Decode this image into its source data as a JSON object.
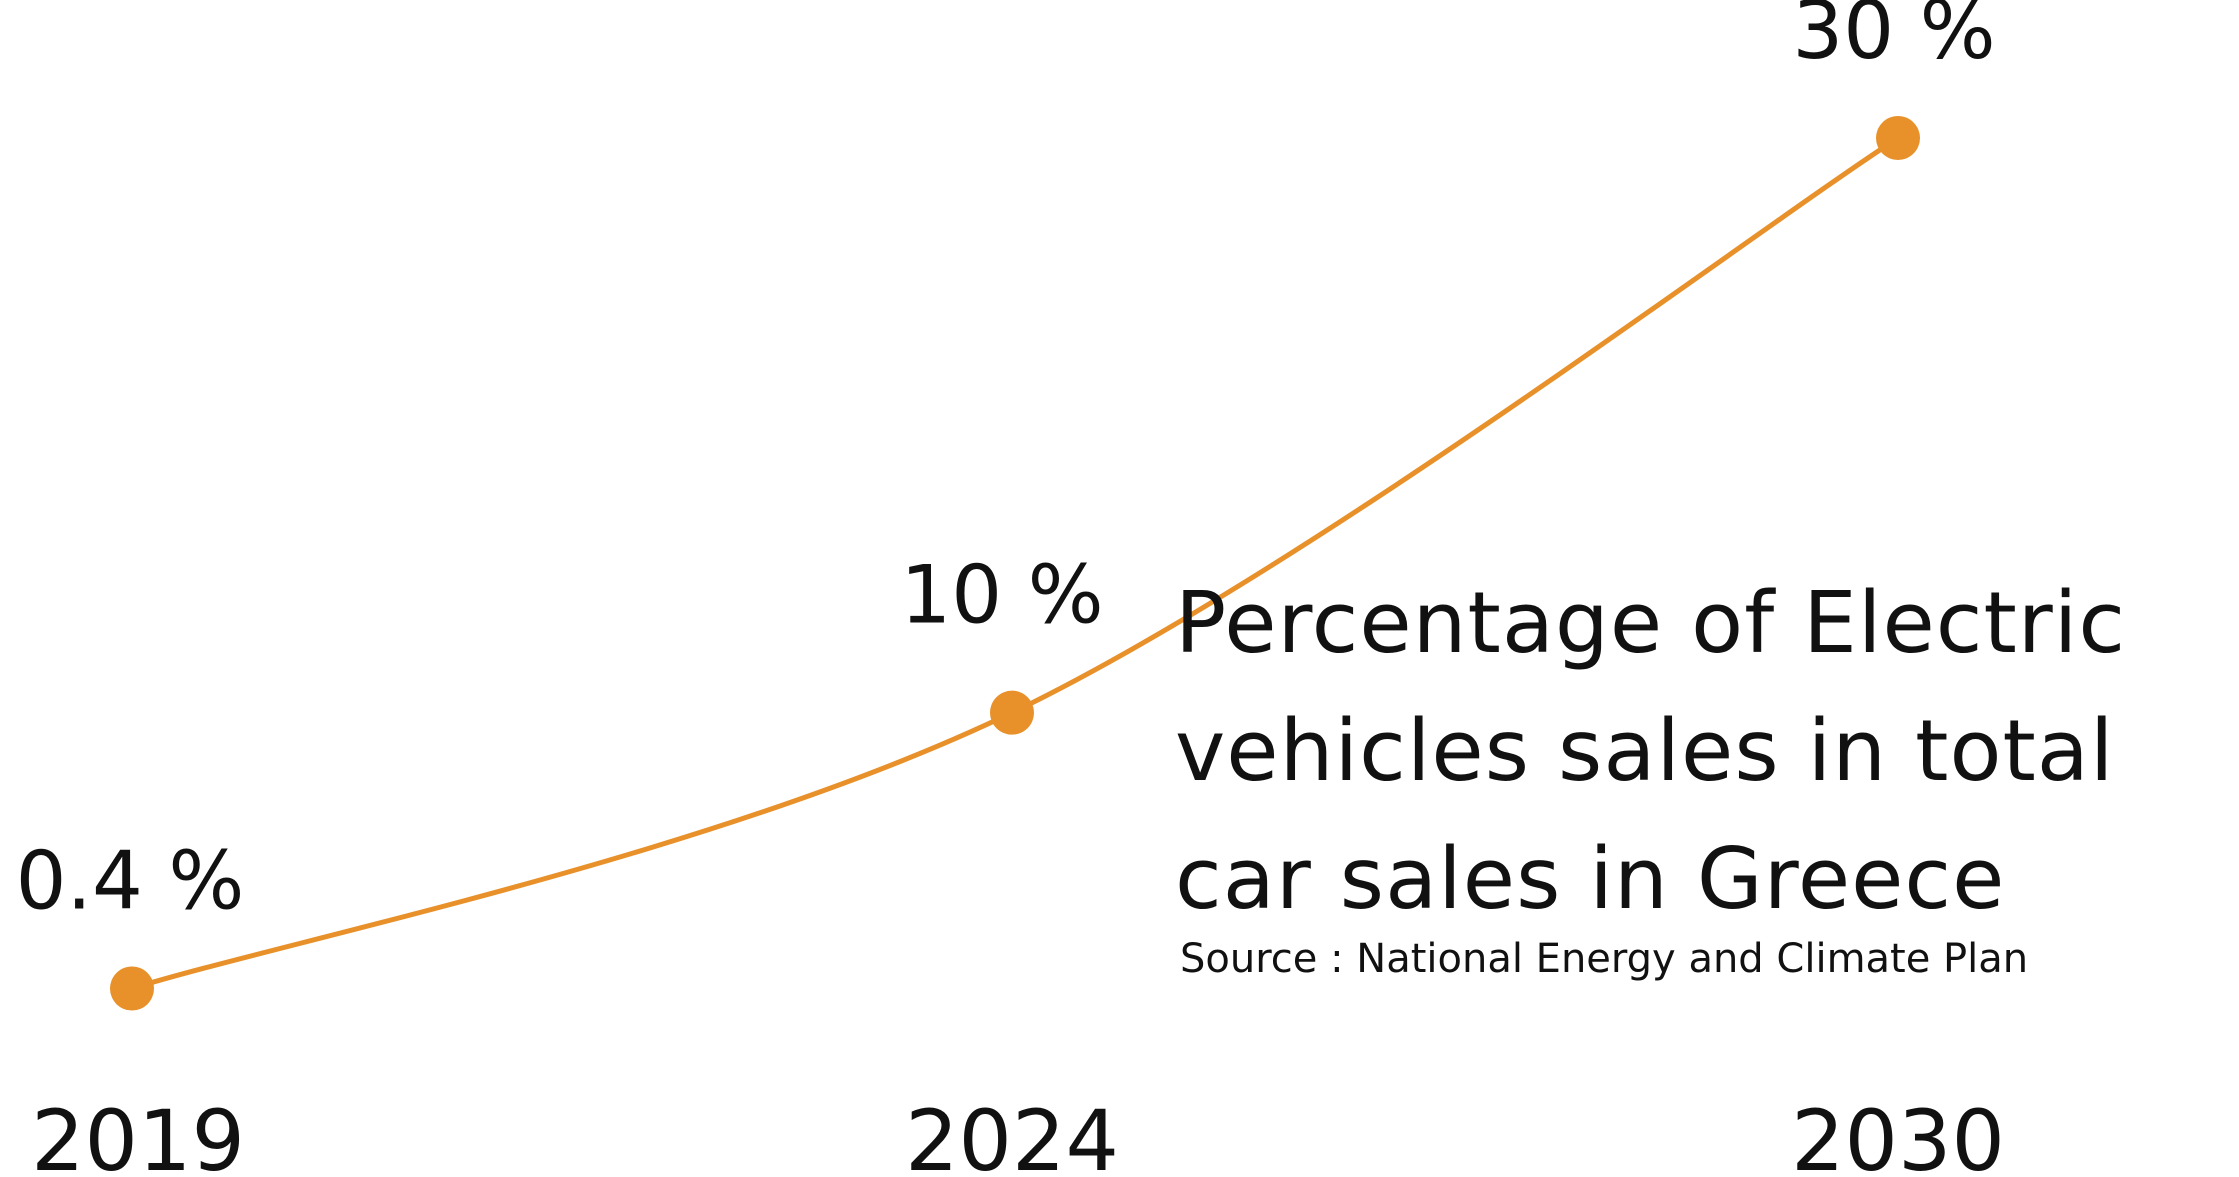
{
  "chart_data": {
    "type": "line",
    "title": "Percentage of Electric vehicles sales in total car sales in Greece",
    "subtitle": "Source : National Energy and Climate Plan",
    "x": [
      "2019",
      "2024",
      "2030"
    ],
    "series": [
      {
        "values": [
          0.4,
          10,
          30
        ],
        "data_labels": [
          "0.4 %",
          "10 %",
          "30 %"
        ],
        "color": "#E8912A"
      }
    ],
    "xlabel": "",
    "ylabel": "",
    "ylim": [
      0,
      30
    ],
    "grid": false,
    "legend": "none",
    "text_color": "#111111"
  }
}
